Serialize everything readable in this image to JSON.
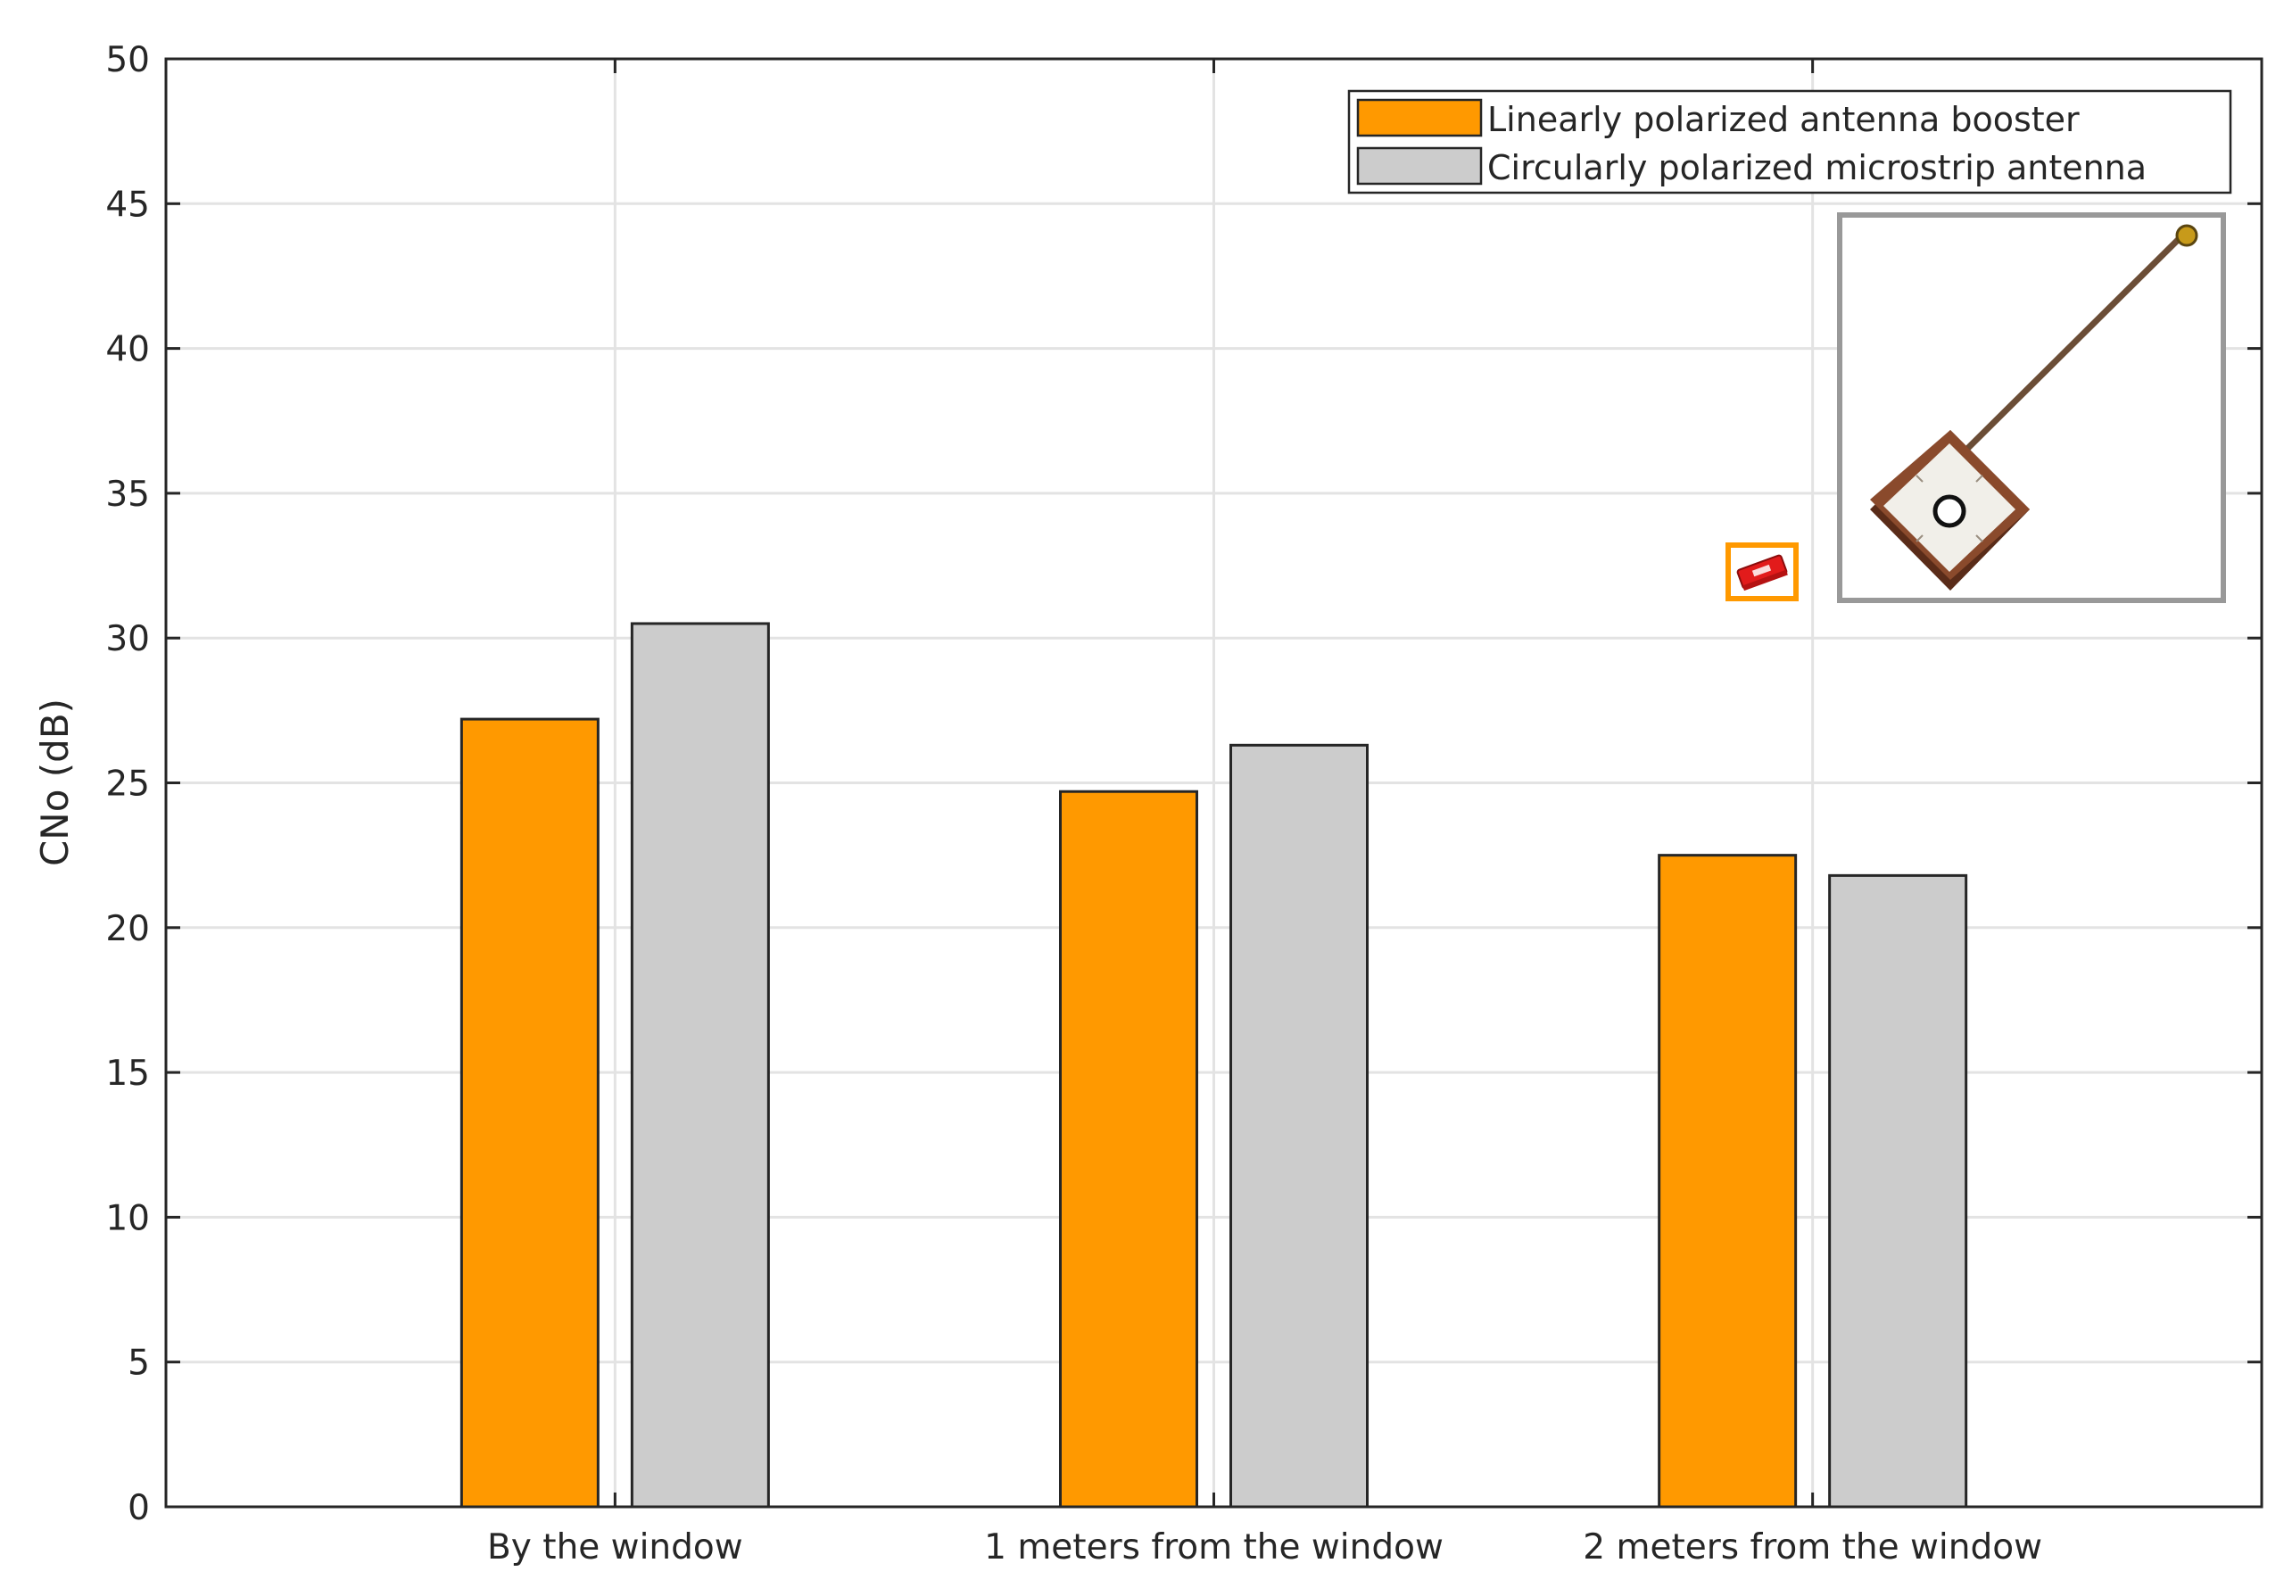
{
  "chart_data": {
    "type": "bar",
    "categories": [
      "By the window",
      "1 meters from the window",
      "2 meters from the window"
    ],
    "series": [
      {
        "name": "Linearly polarized antenna booster",
        "color": "#ff9900",
        "values": [
          27.2,
          24.7,
          22.5
        ]
      },
      {
        "name": "Circularly polarized microstrip antenna",
        "color": "#cccccc",
        "values": [
          30.5,
          26.3,
          21.8
        ]
      }
    ],
    "xlabel": "",
    "ylabel": "CNo (dB)",
    "ylim": [
      0,
      50
    ],
    "yticks": [
      "0",
      "5",
      "10",
      "15",
      "20",
      "25",
      "30",
      "35",
      "40",
      "45",
      "50"
    ],
    "grid": true,
    "legend_position": "top-right",
    "inset_images": [
      "small chip antenna booster photo",
      "circularly polarized microstrip patch antenna photo"
    ]
  }
}
